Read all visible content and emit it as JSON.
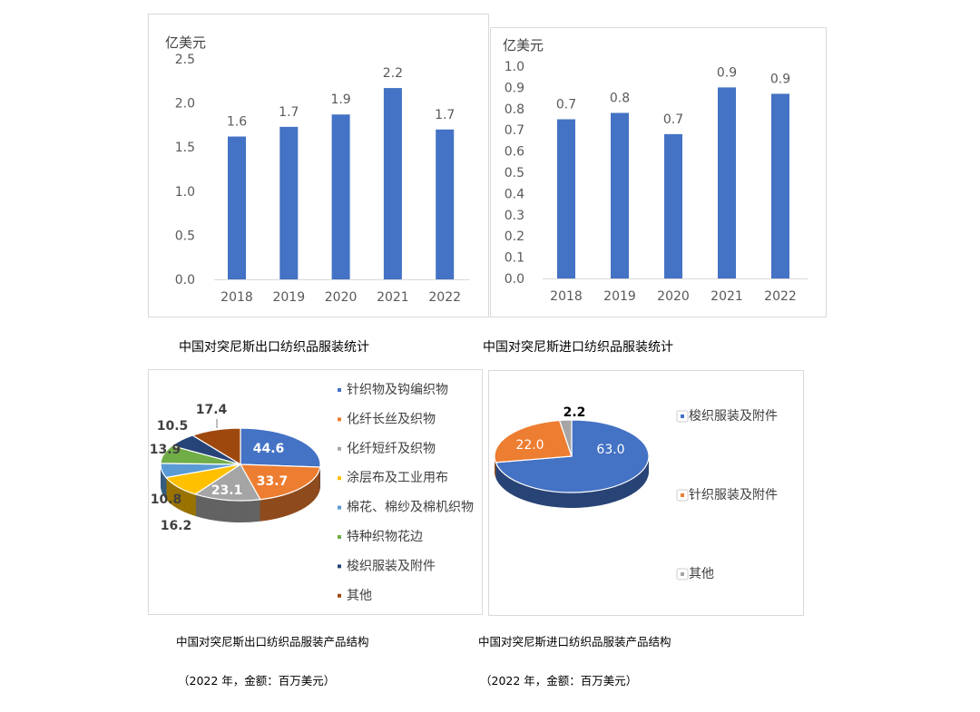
{
  "colors": {
    "bar": "#4472C4",
    "axis_text": "#595959",
    "frame": "#D9D9D9"
  },
  "chart_data": [
    {
      "type": "bar",
      "ylabel": "亿美元",
      "categories": [
        "2018",
        "2019",
        "2020",
        "2021",
        "2022"
      ],
      "values": [
        1.62,
        1.73,
        1.87,
        2.17,
        1.7
      ],
      "data_labels": [
        "1.6",
        "1.7",
        "1.9",
        "2.2",
        "1.7"
      ],
      "yticks": [
        "0.0",
        "0.5",
        "1.0",
        "1.5",
        "2.0",
        "2.5"
      ],
      "ylim": [
        0,
        2.5
      ],
      "grid": false,
      "caption": "中国对突尼斯出口纺织品服装统计"
    },
    {
      "type": "bar",
      "ylabel": "亿美元",
      "categories": [
        "2018",
        "2019",
        "2020",
        "2021",
        "2022"
      ],
      "values": [
        0.75,
        0.78,
        0.68,
        0.9,
        0.87
      ],
      "data_labels": [
        "0.7",
        "0.8",
        "0.7",
        "0.9",
        "0.9"
      ],
      "yticks": [
        "0.0",
        "0.1",
        "0.2",
        "0.3",
        "0.4",
        "0.5",
        "0.6",
        "0.7",
        "0.8",
        "0.9",
        "1.0"
      ],
      "ylim": [
        0,
        1.0
      ],
      "grid": false,
      "caption": "中国对突尼斯进口纺织品服装统计"
    },
    {
      "type": "pie",
      "style": "3d",
      "legend_position": "right",
      "slices": [
        {
          "name": "针织物及钩编织物",
          "value": 44.6,
          "label": "44.6",
          "color": "#4472C4"
        },
        {
          "name": "化纤长丝及织物",
          "value": 33.7,
          "label": "33.7",
          "color": "#ED7D31"
        },
        {
          "name": "化纤短纤及织物",
          "value": 23.1,
          "label": "23.1",
          "color": "#A5A5A5"
        },
        {
          "name": "涂层布及工业用布",
          "value": 16.2,
          "label": "16.2",
          "color": "#FFC000"
        },
        {
          "name": "棉花、棉纱及棉机织物",
          "value": 10.8,
          "label": "10.8",
          "color": "#5B9BD5"
        },
        {
          "name": "特种织物花边",
          "value": 13.9,
          "label": "13.9",
          "color": "#70AD47"
        },
        {
          "name": "梭织服装及附件",
          "value": 10.5,
          "label": "10.5",
          "color": "#264478"
        },
        {
          "name": "其他",
          "value": 17.4,
          "label": "17.4",
          "color": "#9E480E"
        }
      ],
      "caption": "中国对突尼斯出口纺织品服装产品结构",
      "subcaption": "（2022 年，金额：百万美元）"
    },
    {
      "type": "pie",
      "style": "3d",
      "legend_position": "right",
      "slices": [
        {
          "name": "梭织服装及附件",
          "value": 63.0,
          "label": "63.0",
          "color": "#4472C4"
        },
        {
          "name": "针织服装及附件",
          "value": 22.0,
          "label": "22.0",
          "color": "#ED7D31"
        },
        {
          "name": "其他",
          "value": 2.2,
          "label": "2.2",
          "color": "#A5A5A5"
        }
      ],
      "caption": "中国对突尼斯进口纺织品服装产品结构",
      "subcaption": "（2022 年，金额：百万美元）"
    }
  ]
}
